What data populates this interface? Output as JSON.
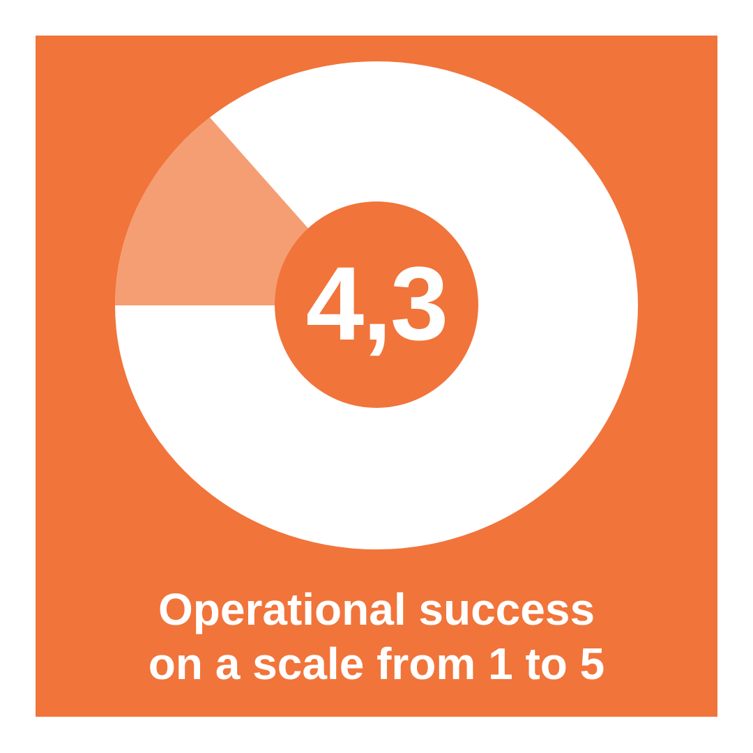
{
  "chart_data": {
    "type": "pie",
    "variant": "donut",
    "value": 4.3,
    "value_label": "4,3",
    "scale_min": 0,
    "scale_max": 5,
    "caption_lines": [
      "Operational success",
      "on a scale from 1 to 5"
    ],
    "colors": {
      "background": "#f1743a",
      "filled": "#ffffff",
      "remainder": "#f59e74",
      "text": "#ffffff"
    }
  }
}
